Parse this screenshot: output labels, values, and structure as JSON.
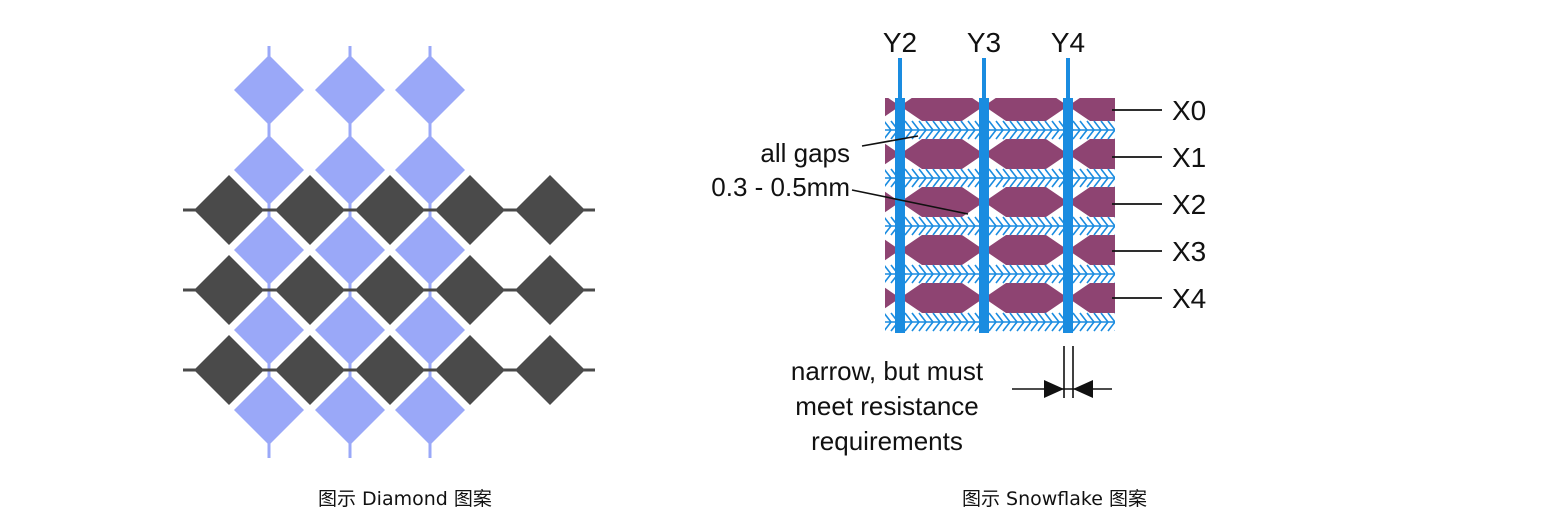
{
  "left_figure": {
    "caption": "图示 Diamond 图案",
    "colors": {
      "blue_pad": "#9aa8f8",
      "dark_pad": "#4a4a4a",
      "trace": "#9aa8f8",
      "dark_trace": "#4a4a4a"
    }
  },
  "right_figure": {
    "caption": "图示 Snowflake 图案",
    "colors": {
      "y_electrode": "#1a8ce0",
      "x_electrode": "#8e4472",
      "pattern_bg": "#ffffff",
      "text": "#111111"
    },
    "y_labels": [
      "Y2",
      "Y3",
      "Y4"
    ],
    "x_labels": [
      "X0",
      "X1",
      "X2",
      "X3",
      "X4"
    ],
    "annotations": {
      "gap_line1": "all gaps",
      "gap_line2": "0.3 - 0.5mm",
      "width_line1": "narrow, but must",
      "width_line2": "meet resistance",
      "width_line3": "requirements"
    }
  }
}
